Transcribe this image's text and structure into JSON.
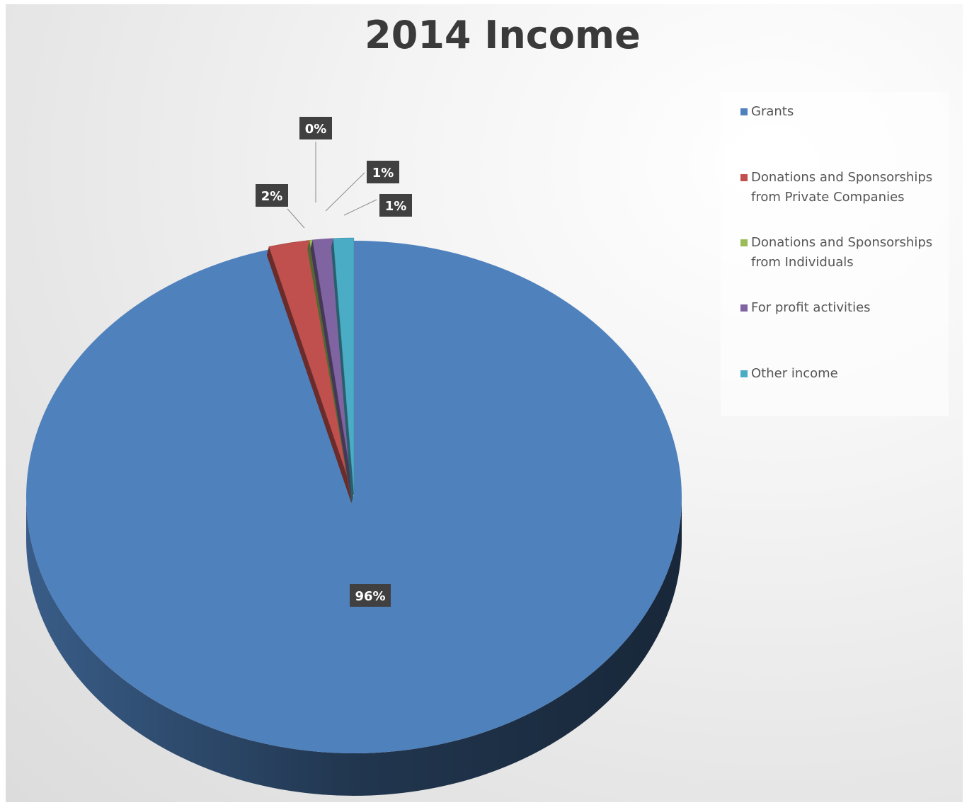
{
  "chart_data": {
    "type": "pie",
    "title": "2014 Income",
    "categories": [
      "Grants",
      "Donations and Sponsorships from Private Companies",
      "Donations and Sponsorships from Individuals",
      "For profit activities",
      "Other income"
    ],
    "values": [
      96,
      2,
      0,
      1,
      1
    ],
    "data_labels": [
      "96%",
      "2%",
      "0%",
      "1%",
      "1%"
    ],
    "colors": [
      "#4f81bd",
      "#c0504d",
      "#9bbb59",
      "#8064a2",
      "#4bacc6"
    ],
    "legend_position": "right",
    "style": "3d"
  }
}
